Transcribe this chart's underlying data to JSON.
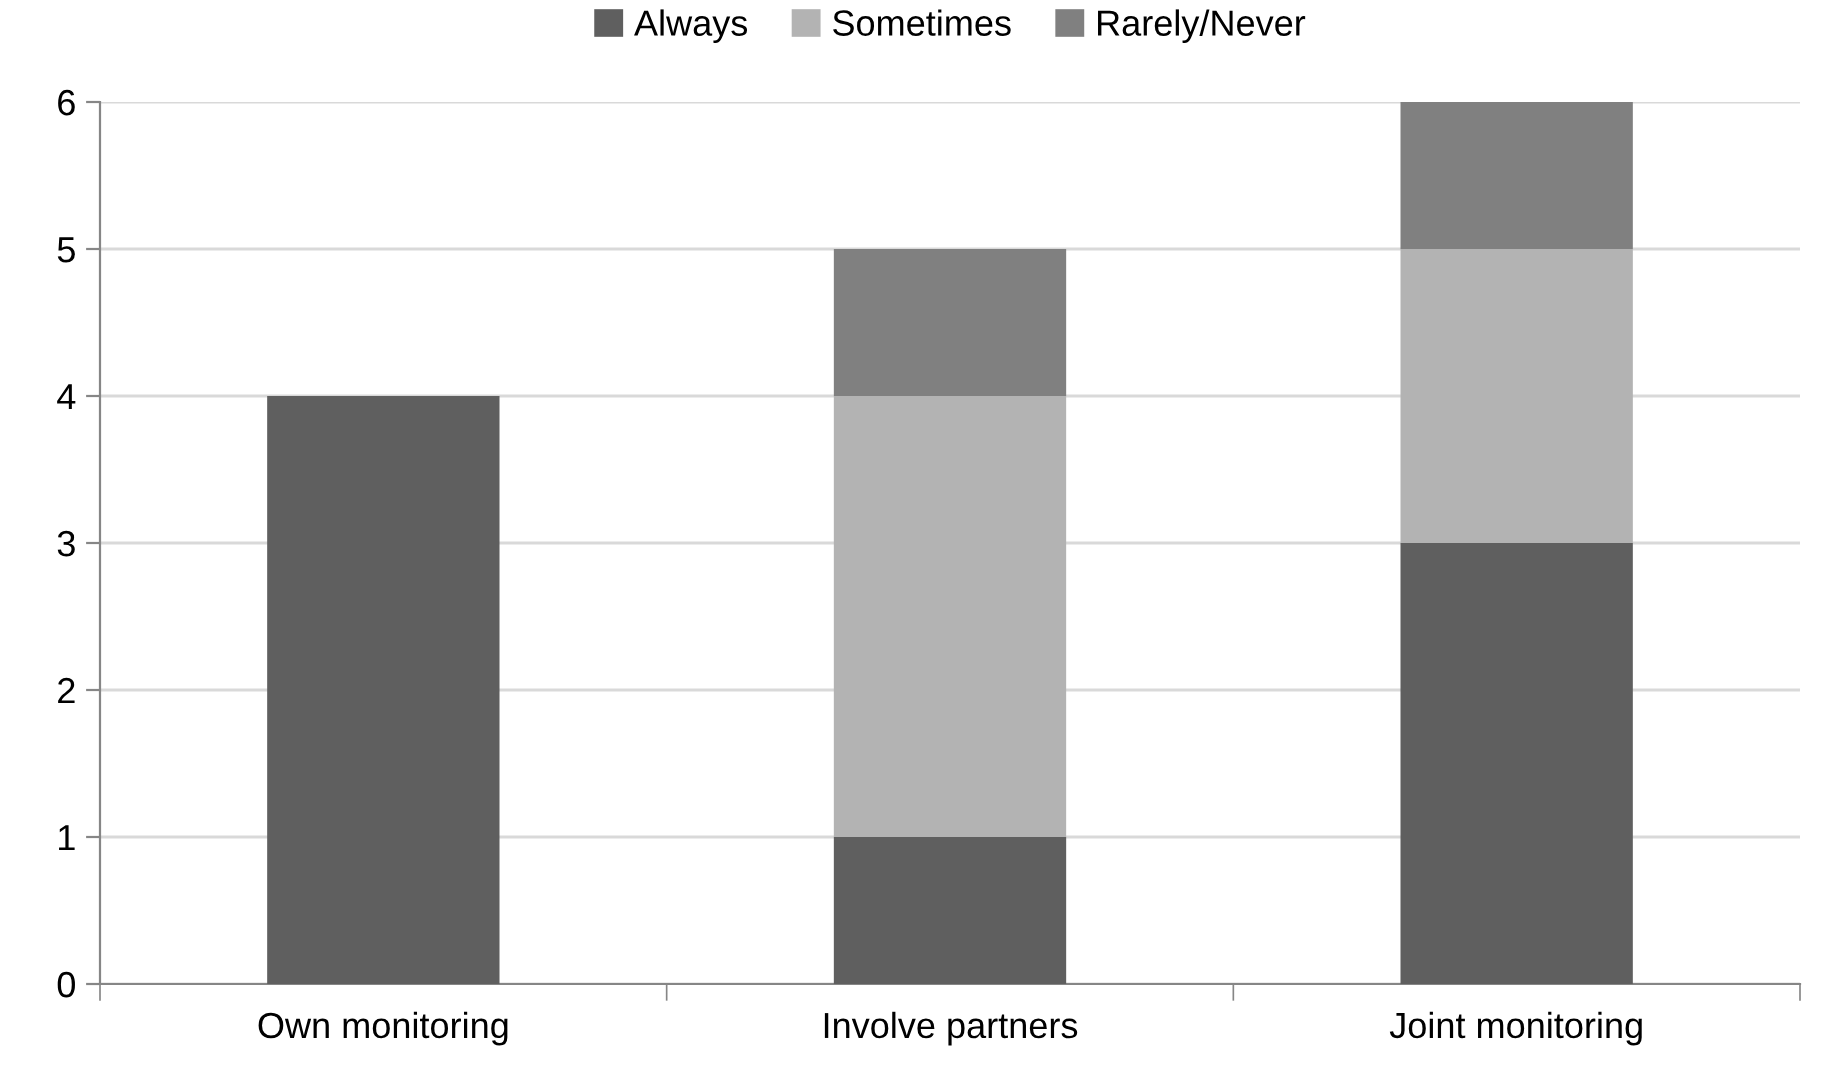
{
  "chart_data": {
    "type": "bar",
    "stacked": true,
    "categories": [
      "Own monitoring",
      "Involve partners",
      "Joint monitoring"
    ],
    "series": [
      {
        "name": "Always",
        "color": "#5f5f5f",
        "values": [
          4,
          1,
          3
        ]
      },
      {
        "name": "Sometimes",
        "color": "#b3b3b3",
        "values": [
          0,
          3,
          2
        ]
      },
      {
        "name": "Rarely/Never",
        "color": "#808080",
        "values": [
          0,
          1,
          1
        ]
      }
    ],
    "ylim": [
      0,
      6
    ],
    "yticks": [
      0,
      1,
      2,
      3,
      4,
      5,
      6
    ],
    "grid": "y",
    "legend": "top"
  }
}
